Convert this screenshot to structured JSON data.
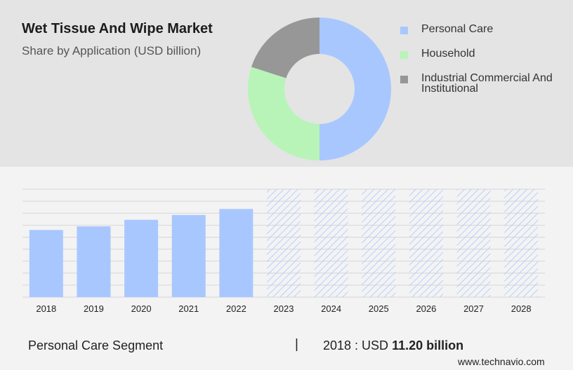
{
  "header": {
    "title": "Wet Tissue And Wipe Market",
    "subtitle": "Share by Application (USD billion)"
  },
  "chart_data": [
    {
      "type": "pie",
      "variant": "donut",
      "series": [
        {
          "name": "Personal Care",
          "value": 50,
          "color": "#a9c7ff"
        },
        {
          "name": "Household",
          "value": 30,
          "color": "#b8f4b8"
        },
        {
          "name": "Industrial Commercial And Institutional",
          "value": 20,
          "color": "#979797"
        }
      ],
      "legend_position": "right"
    },
    {
      "type": "bar",
      "categories": [
        "2018",
        "2019",
        "2020",
        "2021",
        "2022",
        "2023",
        "2024",
        "2025",
        "2026",
        "2027",
        "2028"
      ],
      "values": [
        11.2,
        11.8,
        12.9,
        13.7,
        14.7,
        null,
        null,
        null,
        null,
        null,
        null
      ],
      "forecast_categories": [
        "2023",
        "2024",
        "2025",
        "2026",
        "2027",
        "2028"
      ],
      "forecast_style": "hatched",
      "bar_color": "#a9c7ff",
      "forecast_color": "#a9c7ff",
      "ylim": [
        0,
        18
      ],
      "grid": true,
      "title": "",
      "xlabel": "",
      "ylabel": ""
    }
  ],
  "footer": {
    "segment_label": "Personal Care Segment",
    "separator": "|",
    "value_prefix": "2018 : USD",
    "value_bold": "11.20 billion",
    "source": "www.technavio.com"
  }
}
